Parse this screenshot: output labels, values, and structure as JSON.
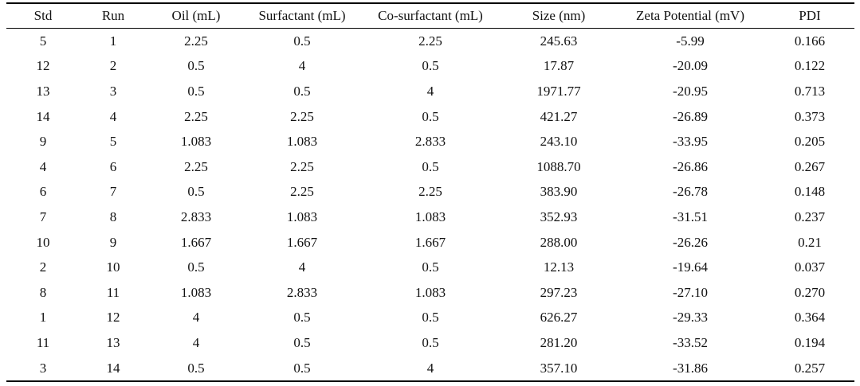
{
  "table": {
    "headers": [
      "Std",
      "Run",
      "Oil (mL)",
      "Surfactant (mL)",
      "Co-surfactant (mL)",
      "Size (nm)",
      "Zeta Potential (mV)",
      "PDI"
    ],
    "rows": [
      [
        "5",
        "1",
        "2.25",
        "0.5",
        "2.25",
        "245.63",
        "-5.99",
        "0.166"
      ],
      [
        "12",
        "2",
        "0.5",
        "4",
        "0.5",
        "17.87",
        "-20.09",
        "0.122"
      ],
      [
        "13",
        "3",
        "0.5",
        "0.5",
        "4",
        "1971.77",
        "-20.95",
        "0.713"
      ],
      [
        "14",
        "4",
        "2.25",
        "2.25",
        "0.5",
        "421.27",
        "-26.89",
        "0.373"
      ],
      [
        "9",
        "5",
        "1.083",
        "1.083",
        "2.833",
        "243.10",
        "-33.95",
        "0.205"
      ],
      [
        "4",
        "6",
        "2.25",
        "2.25",
        "0.5",
        "1088.70",
        "-26.86",
        "0.267"
      ],
      [
        "6",
        "7",
        "0.5",
        "2.25",
        "2.25",
        "383.90",
        "-26.78",
        "0.148"
      ],
      [
        "7",
        "8",
        "2.833",
        "1.083",
        "1.083",
        "352.93",
        "-31.51",
        "0.237"
      ],
      [
        "10",
        "9",
        "1.667",
        "1.667",
        "1.667",
        "288.00",
        "-26.26",
        "0.21"
      ],
      [
        "2",
        "10",
        "0.5",
        "4",
        "0.5",
        "12.13",
        "-19.64",
        "0.037"
      ],
      [
        "8",
        "11",
        "1.083",
        "2.833",
        "1.083",
        "297.23",
        "-27.10",
        "0.270"
      ],
      [
        "1",
        "12",
        "4",
        "0.5",
        "0.5",
        "626.27",
        "-29.33",
        "0.364"
      ],
      [
        "11",
        "13",
        "4",
        "0.5",
        "0.5",
        "281.20",
        "-33.52",
        "0.194"
      ],
      [
        "3",
        "14",
        "0.5",
        "0.5",
        "4",
        "357.10",
        "-31.86",
        "0.257"
      ]
    ]
  }
}
